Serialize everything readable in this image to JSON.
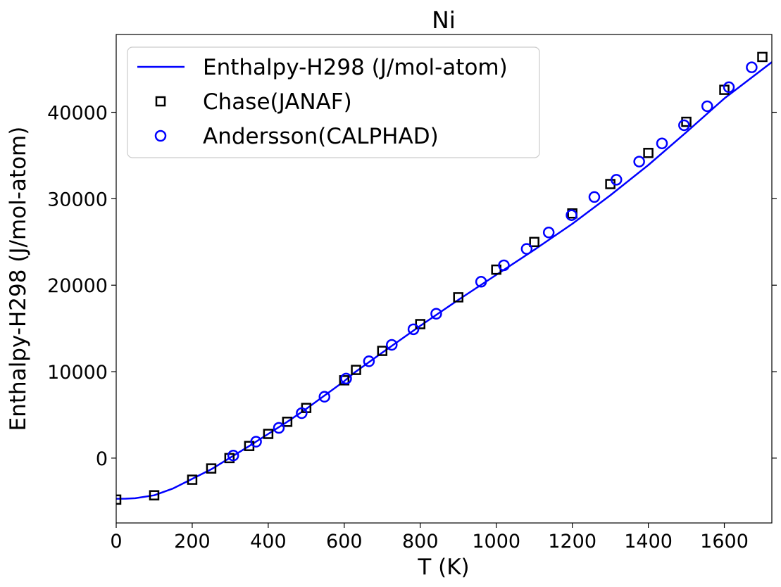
{
  "chart_data": {
    "type": "scatter",
    "title": "Ni",
    "xlabel": "T (K)",
    "ylabel": "Enthalpy-H298 (J/mol-atom)",
    "xlim": [
      0,
      1725
    ],
    "ylim": [
      -7500,
      49000
    ],
    "xticks": [
      0,
      200,
      400,
      600,
      800,
      1000,
      1200,
      1400,
      1600
    ],
    "yticks": [
      0,
      10000,
      20000,
      30000,
      40000
    ],
    "grid": false,
    "legend_position": "top-left",
    "series": [
      {
        "name": "Enthalpy-H298 (J/mol-atom)",
        "kind": "line",
        "color": "#0000ff",
        "x": [
          0,
          25,
          50,
          100,
          150,
          200,
          250,
          298,
          350,
          400,
          450,
          500,
          550,
          600,
          627,
          700,
          800,
          900,
          1000,
          1100,
          1200,
          1300,
          1400,
          1500,
          1600,
          1725
        ],
        "y": [
          -4700,
          -4690,
          -4640,
          -4300,
          -3500,
          -2400,
          -1300,
          0,
          1400,
          2800,
          4200,
          5700,
          7300,
          8900,
          9900,
          12200,
          15300,
          18300,
          21200,
          24100,
          27100,
          30400,
          33900,
          37700,
          41600,
          45800
        ]
      },
      {
        "name": "Chase(JANAF)",
        "kind": "marker",
        "marker": "square",
        "color": "#000000",
        "x": [
          0,
          100,
          200,
          250,
          298,
          350,
          400,
          450,
          500,
          600,
          631,
          700,
          800,
          900,
          1000,
          1100,
          1200,
          1300,
          1400,
          1500,
          1600,
          1700
        ],
        "y": [
          -4800,
          -4300,
          -2500,
          -1200,
          0,
          1400,
          2800,
          4200,
          5800,
          9000,
          10200,
          12400,
          15500,
          18600,
          21800,
          25000,
          28300,
          31700,
          35300,
          38900,
          42600,
          46400
        ]
      },
      {
        "name": "Andersson(CALPHAD)",
        "kind": "marker",
        "marker": "circle",
        "color": "#0000ff",
        "x": [
          308,
          368,
          428,
          488,
          548,
          605,
          665,
          725,
          782,
          842,
          960,
          1020,
          1080,
          1138,
          1198,
          1258,
          1316,
          1376,
          1436,
          1494,
          1555,
          1612,
          1672
        ],
        "y": [
          300,
          1900,
          3500,
          5200,
          7100,
          9200,
          11200,
          13100,
          14900,
          16700,
          20400,
          22300,
          24200,
          26100,
          28100,
          30200,
          32200,
          34300,
          36400,
          38500,
          40700,
          42900,
          45200
        ]
      }
    ]
  }
}
